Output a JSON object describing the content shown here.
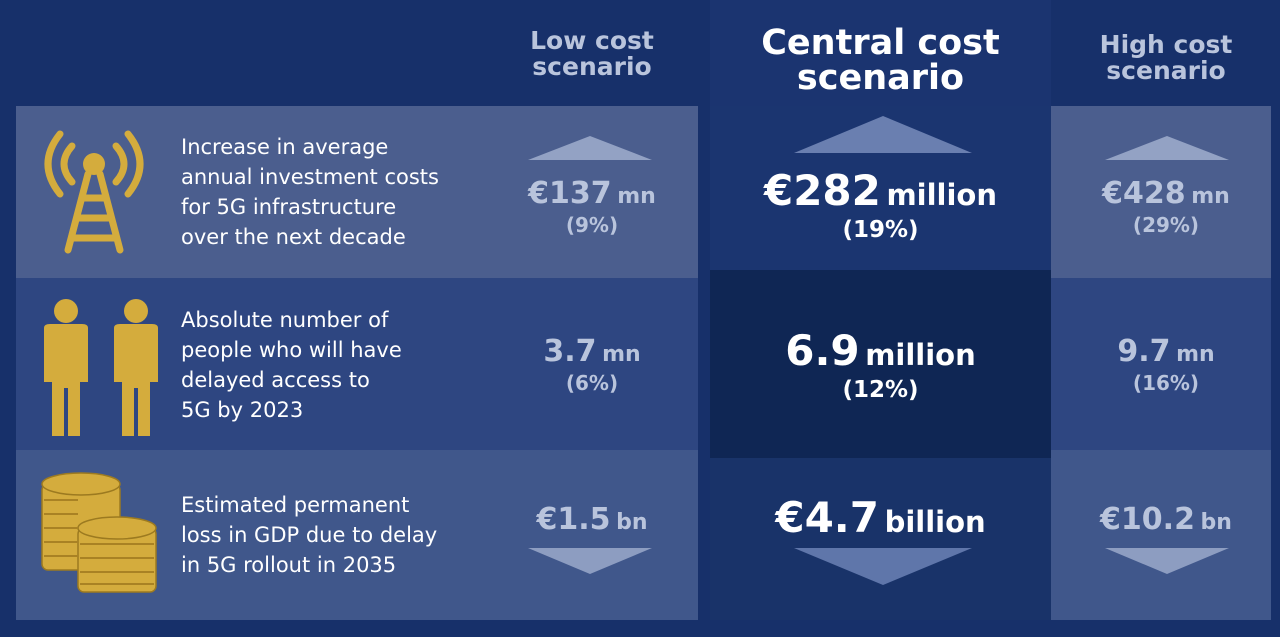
{
  "colors": {
    "background": "#17306a",
    "icon_gold": "#d4ac3d",
    "muted_text": "#b9c4dc",
    "white_text": "#ffffff"
  },
  "headers": {
    "low": [
      "Low cost",
      "scenario"
    ],
    "central": [
      "Central cost",
      "scenario"
    ],
    "high": [
      "High cost",
      "scenario"
    ]
  },
  "rows": [
    {
      "icon": "cell-tower-icon",
      "description": [
        "Increase in average",
        "annual investment costs",
        "for 5G infrastructure",
        "over the next decade"
      ],
      "direction": "up",
      "low": {
        "value": "€137",
        "unit": "mn",
        "pct": "(9%)"
      },
      "central": {
        "value": "€282",
        "unit": "million",
        "pct": "(19%)"
      },
      "high": {
        "value": "€428",
        "unit": "mn",
        "pct": "(29%)"
      }
    },
    {
      "icon": "people-icon",
      "description": [
        "Absolute number of",
        "people who will have",
        "delayed access to",
        "5G by 2023"
      ],
      "direction": "none",
      "low": {
        "value": "3.7",
        "unit": "mn",
        "pct": "(6%)"
      },
      "central": {
        "value": "6.9",
        "unit": "million",
        "pct": "(12%)"
      },
      "high": {
        "value": "9.7",
        "unit": "mn",
        "pct": "(16%)"
      }
    },
    {
      "icon": "coins-icon",
      "description": [
        "Estimated permanent",
        "loss in GDP due to delay",
        "in 5G rollout in 2035"
      ],
      "direction": "down",
      "low": {
        "value": "€1.5",
        "unit": "bn",
        "pct": ""
      },
      "central": {
        "value": "€4.7",
        "unit": "billion",
        "pct": ""
      },
      "high": {
        "value": "€10.2",
        "unit": "bn",
        "pct": ""
      }
    }
  ]
}
